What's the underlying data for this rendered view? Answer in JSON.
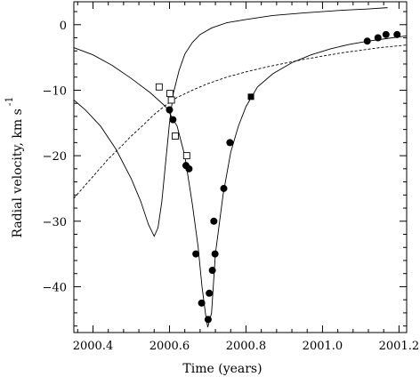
{
  "chart_data": {
    "type": "scatter",
    "xlabel": "Time (years)",
    "ylabel": "Radial velocity, km s",
    "ylabel_superscript": "-1",
    "xlim": [
      2000.35,
      2001.22
    ],
    "ylim": [
      -47,
      3.5
    ],
    "x_ticks": [
      2000.4,
      2000.6,
      2000.8,
      2001.0,
      2001.2
    ],
    "x_tick_labels": [
      "2000.4",
      "2000.6",
      "2000.8",
      "2001.0",
      "2001.2"
    ],
    "y_ticks": [
      0,
      -10,
      -20,
      -30,
      -40
    ],
    "y_tick_labels": [
      "0",
      "−10",
      "−20",
      "−30",
      "−40"
    ],
    "grid": false,
    "series": [
      {
        "kind": "filled-circles",
        "points": [
          [
            2000.6,
            -13.0
          ],
          [
            2000.609,
            -14.5
          ],
          [
            2000.643,
            -21.5
          ],
          [
            2000.651,
            -22.0
          ],
          [
            2000.669,
            -35.0
          ],
          [
            2000.684,
            -42.5
          ],
          [
            2000.701,
            -45.0
          ],
          [
            2000.704,
            -41.0
          ],
          [
            2000.712,
            -37.5
          ],
          [
            2000.716,
            -30.0
          ],
          [
            2000.719,
            -35.0
          ],
          [
            2000.742,
            -25.0
          ],
          [
            2000.758,
            -18.0
          ],
          [
            2001.117,
            -2.5
          ],
          [
            2001.145,
            -2.0
          ],
          [
            2001.166,
            -1.5
          ],
          [
            2001.195,
            -1.5
          ]
        ]
      },
      {
        "kind": "open-squares",
        "points": [
          [
            2000.573,
            -9.5
          ],
          [
            2000.601,
            -10.5
          ],
          [
            2000.605,
            -11.5
          ],
          [
            2000.615,
            -17.0
          ],
          [
            2000.645,
            -20.0
          ]
        ]
      },
      {
        "kind": "filled-squares",
        "points": [
          [
            2000.813,
            -11.0
          ]
        ]
      },
      {
        "kind": "curve",
        "style": "solid",
        "points": [
          [
            2000.35,
            -3.5
          ],
          [
            2000.4,
            -4.6
          ],
          [
            2000.45,
            -6.2
          ],
          [
            2000.5,
            -8.2
          ],
          [
            2000.55,
            -10.4
          ],
          [
            2000.59,
            -12.5
          ],
          [
            2000.62,
            -15.5
          ],
          [
            2000.64,
            -20.0
          ],
          [
            2000.66,
            -27.5
          ],
          [
            2000.675,
            -34.0
          ],
          [
            2000.685,
            -40.0
          ],
          [
            2000.695,
            -44.5
          ],
          [
            2000.7,
            -46.2
          ],
          [
            2000.71,
            -44.0
          ],
          [
            2000.72,
            -35.0
          ],
          [
            2000.74,
            -26.0
          ],
          [
            2000.76,
            -19.5
          ],
          [
            2000.78,
            -15.5
          ],
          [
            2000.8,
            -12.5
          ],
          [
            2000.83,
            -9.5
          ],
          [
            2000.87,
            -7.5
          ],
          [
            2000.92,
            -5.8
          ],
          [
            2000.97,
            -4.6
          ],
          [
            2001.02,
            -3.7
          ],
          [
            2001.07,
            -3.0
          ],
          [
            2001.12,
            -2.5
          ],
          [
            2001.17,
            -2.1
          ],
          [
            2001.22,
            -1.7
          ]
        ]
      },
      {
        "kind": "curve",
        "style": "solid",
        "points": [
          [
            2000.35,
            -11.5
          ],
          [
            2000.38,
            -13.0
          ],
          [
            2000.42,
            -15.5
          ],
          [
            2000.46,
            -19.0
          ],
          [
            2000.5,
            -23.5
          ],
          [
            2000.525,
            -27.0
          ],
          [
            2000.545,
            -30.5
          ],
          [
            2000.56,
            -32.3
          ],
          [
            2000.57,
            -31.0
          ],
          [
            2000.58,
            -27.0
          ],
          [
            2000.59,
            -21.0
          ],
          [
            2000.6,
            -15.0
          ],
          [
            2000.61,
            -10.5
          ],
          [
            2000.625,
            -7.0
          ],
          [
            2000.64,
            -4.5
          ],
          [
            2000.66,
            -2.7
          ],
          [
            2000.68,
            -1.5
          ],
          [
            2000.71,
            -0.5
          ],
          [
            2000.75,
            0.3
          ],
          [
            2000.8,
            0.8
          ],
          [
            2000.87,
            1.4
          ],
          [
            2000.95,
            1.8
          ],
          [
            2001.05,
            2.2
          ],
          [
            2001.12,
            2.4
          ],
          [
            2001.17,
            2.6
          ]
        ]
      },
      {
        "kind": "curve",
        "style": "dashed",
        "points": [
          [
            2000.35,
            -26.5
          ],
          [
            2000.38,
            -24.5
          ],
          [
            2000.41,
            -22.5
          ],
          [
            2000.44,
            -20.5
          ],
          [
            2000.47,
            -18.8
          ],
          [
            2000.5,
            -17.0
          ],
          [
            2000.53,
            -15.4
          ],
          [
            2000.56,
            -13.7
          ],
          [
            2000.59,
            -12.3
          ],
          [
            2000.62,
            -11.1
          ],
          [
            2000.66,
            -10.0
          ],
          [
            2000.7,
            -9.0
          ],
          [
            2000.75,
            -8.0
          ],
          [
            2000.8,
            -7.2
          ],
          [
            2000.85,
            -6.5
          ],
          [
            2000.9,
            -5.9
          ],
          [
            2000.95,
            -5.3
          ],
          [
            2001.0,
            -4.8
          ],
          [
            2001.05,
            -4.3
          ],
          [
            2001.1,
            -3.9
          ],
          [
            2001.15,
            -3.5
          ],
          [
            2001.22,
            -3.1
          ]
        ]
      }
    ]
  }
}
